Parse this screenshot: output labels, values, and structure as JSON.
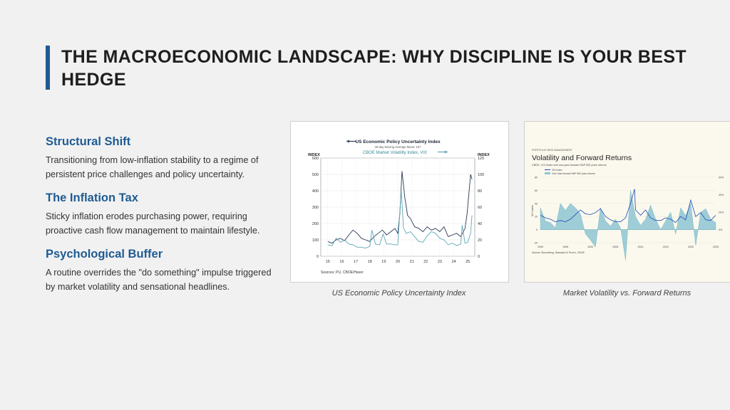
{
  "slide": {
    "title": "THE MACROECONOMIC LANDSCAPE: WHY DISCIPLINE IS YOUR BEST HEDGE",
    "accent_color": "#1f5b93"
  },
  "sections": [
    {
      "heading": "Structural Shift",
      "text": "Transitioning from low-inflation stability to a regime of persistent price challenges and policy uncertainty."
    },
    {
      "heading": "The Inflation Tax",
      "text": "Sticky inflation erodes purchasing power, requiring proactive cash flow management to maintain lifestyle."
    },
    {
      "heading": "Psychological Buffer",
      "text": "A routine overrides the \"do something\" impulse triggered by market volatility and sensational headlines."
    }
  ],
  "captions": {
    "chart1": "US Economic Policy Uncertainty Index",
    "chart2": "Market Volatility vs. Forward Returns"
  },
  "chart_data": [
    {
      "type": "line",
      "legend": [
        "US Economic Policy Uncertainty Index",
        "CBOE Market Volatility Index, VIX"
      ],
      "legend_sub": [
        "30-day Moving Average",
        "Mean: 107"
      ],
      "left_axis_label": "INDEX",
      "right_axis_label": "INDEX",
      "x_ticks": [
        "15",
        "16",
        "17",
        "18",
        "19",
        "20",
        "21",
        "22",
        "23",
        "24",
        "25"
      ],
      "y_left_ticks": [
        0,
        100,
        200,
        300,
        400,
        500,
        600
      ],
      "y_right_ticks": [
        0,
        20,
        40,
        60,
        80,
        100,
        120
      ],
      "ylim_left": [
        0,
        600
      ],
      "ylim_right": [
        0,
        120
      ],
      "xlim": [
        2014.5,
        2025.5
      ],
      "source": "Sources:  PU, CBOE/Haver",
      "colors": {
        "epu": "#2b3a55",
        "vix": "#5fa8b5"
      },
      "series": [
        {
          "name": "US Economic Policy Uncertainty Index",
          "axis": "left",
          "x": [
            2015.0,
            2015.3,
            2015.6,
            2015.9,
            2016.2,
            2016.5,
            2016.8,
            2017.1,
            2017.4,
            2017.7,
            2018.0,
            2018.3,
            2018.6,
            2018.9,
            2019.2,
            2019.5,
            2019.8,
            2020.0,
            2020.15,
            2020.3,
            2020.5,
            2020.7,
            2020.9,
            2021.2,
            2021.5,
            2021.8,
            2022.1,
            2022.4,
            2022.7,
            2023.0,
            2023.3,
            2023.6,
            2023.9,
            2024.2,
            2024.5,
            2024.8,
            2024.95,
            2025.1,
            2025.2,
            2025.3
          ],
          "y": [
            90,
            80,
            100,
            110,
            95,
            130,
            160,
            140,
            110,
            100,
            90,
            120,
            140,
            160,
            130,
            150,
            170,
            140,
            260,
            520,
            360,
            250,
            230,
            180,
            170,
            150,
            180,
            160,
            170,
            150,
            180,
            120,
            130,
            140,
            120,
            170,
            260,
            400,
            500,
            470
          ]
        },
        {
          "name": "CBOE Market Volatility Index, VIX",
          "axis": "right",
          "x": [
            2015.0,
            2015.3,
            2015.6,
            2015.9,
            2016.2,
            2016.5,
            2016.8,
            2017.1,
            2017.4,
            2017.7,
            2018.0,
            2018.15,
            2018.4,
            2018.7,
            2018.95,
            2019.2,
            2019.5,
            2019.8,
            2020.0,
            2020.15,
            2020.25,
            2020.4,
            2020.6,
            2020.9,
            2021.2,
            2021.5,
            2021.8,
            2022.1,
            2022.4,
            2022.7,
            2023.0,
            2023.3,
            2023.6,
            2023.9,
            2024.2,
            2024.5,
            2024.6,
            2024.8,
            2025.0,
            2025.2,
            2025.3
          ],
          "y": [
            14,
            13,
            22,
            17,
            20,
            15,
            14,
            11,
            11,
            10,
            12,
            32,
            15,
            14,
            27,
            15,
            15,
            14,
            14,
            55,
            80,
            35,
            28,
            30,
            24,
            18,
            17,
            25,
            30,
            28,
            22,
            20,
            14,
            16,
            13,
            15,
            38,
            16,
            17,
            28,
            50
          ]
        }
      ]
    },
    {
      "type": "area",
      "header_kicker": "PORTFOLIO RISK MANAGEMENT",
      "title": "Volatility and Forward Returns",
      "subtitle": "CBOE, VIX Index and one-year forward S&P 500 price returns",
      "legend": [
        "VIX Index",
        "One-Year forward S&P 500 price returns"
      ],
      "ylabel": "VIX Index",
      "x_ticks": [
        "1990",
        "1995",
        "2000",
        "2005",
        "2010",
        "2015",
        "2020",
        "2025"
      ],
      "y_left_ticks": [
        80,
        60,
        40,
        20,
        0,
        -20
      ],
      "y_right_ticks": [
        "60%",
        "40%",
        "20%",
        "0%"
      ],
      "source": "Source: Bloomberg, Standard & Poor's, CBOE",
      "colors": {
        "vix": "#1d47b5",
        "returns": "#8ec5d2"
      },
      "series": [
        {
          "name": "VIX Index",
          "x": [
            1990,
            1991,
            1992,
            1993,
            1994,
            1995,
            1996,
            1997,
            1998,
            1999,
            2000,
            2001,
            2002,
            2003,
            2004,
            2005,
            2006,
            2007,
            2008,
            2008.8,
            2009,
            2010,
            2011,
            2012,
            2013,
            2014,
            2015,
            2016,
            2017,
            2018,
            2019,
            2020,
            2021,
            2022,
            2023,
            2024,
            2025
          ],
          "y": [
            22,
            18,
            16,
            12,
            14,
            12,
            16,
            23,
            30,
            24,
            23,
            26,
            32,
            20,
            15,
            12,
            12,
            18,
            40,
            62,
            30,
            22,
            30,
            18,
            14,
            14,
            18,
            16,
            11,
            20,
            15,
            45,
            20,
            26,
            15,
            14,
            22
          ]
        },
        {
          "name": "One-Year forward S&P 500 price returns",
          "x": [
            1990,
            1991,
            1992,
            1993,
            1994,
            1995,
            1996,
            1997,
            1998,
            1999,
            2000,
            2001,
            2002,
            2003,
            2004,
            2005,
            2006,
            2007,
            2008,
            2009,
            2010,
            2011,
            2012,
            2013,
            2014,
            2015,
            2016,
            2017,
            2018,
            2019,
            2020,
            2021,
            2022,
            2023,
            2024,
            2025
          ],
          "y": [
            25,
            10,
            8,
            2,
            30,
            22,
            30,
            25,
            18,
            -5,
            -12,
            -20,
            25,
            10,
            4,
            12,
            2,
            -35,
            45,
            15,
            5,
            12,
            28,
            12,
            0,
            10,
            20,
            -5,
            25,
            16,
            30,
            -18,
            20,
            24,
            12,
            8
          ]
        }
      ]
    }
  ]
}
